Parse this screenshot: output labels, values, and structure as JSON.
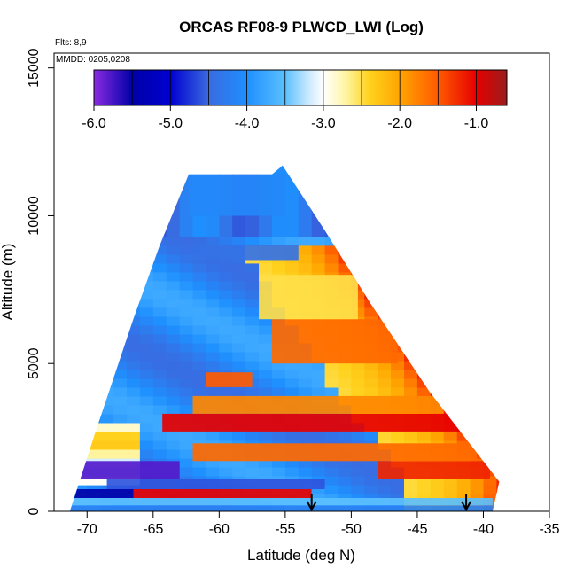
{
  "chart_data": {
    "type": "heatmap",
    "title": "ORCAS RF08-9 PLWCD_LWI (Log)",
    "subtitle_flights": "Flts: 8,9",
    "subtitle_dates": "MMDD: 0205,0208",
    "xlabel": "Latitude (deg N)",
    "ylabel": "Altitude (m)",
    "xlim": [
      -72.5,
      -35
    ],
    "ylim": [
      0,
      15500
    ],
    "x_ticks": [
      -70,
      -65,
      -60,
      -55,
      -50,
      -45,
      -40,
      -35
    ],
    "x_tick_labels": [
      "-70",
      "-65",
      "-60",
      "-55",
      "-50",
      "-45",
      "-40",
      "-35"
    ],
    "y_ticks": [
      0,
      5000,
      10000,
      15000
    ],
    "y_tick_labels": [
      "0",
      "5000",
      "10000",
      "15000"
    ],
    "colorbar": {
      "range": [
        -6.0,
        -0.6
      ],
      "ticks": [
        -6.0,
        -5.0,
        -4.0,
        -3.0,
        -2.0,
        -1.0
      ],
      "tick_labels": [
        "-6.0",
        "-5.0",
        "-4.0",
        "-3.0",
        "-2.0",
        "-1.0"
      ],
      "stops": [
        {
          "v": -6.0,
          "color": "#8a2be2"
        },
        {
          "v": -5.5,
          "color": "#0000a8"
        },
        {
          "v": -5.0,
          "color": "#0000d0"
        },
        {
          "v": -4.5,
          "color": "#3a6ae0"
        },
        {
          "v": -4.0,
          "color": "#1e90ff"
        },
        {
          "v": -3.5,
          "color": "#5bc0ff"
        },
        {
          "v": -3.2,
          "color": "#c8e8ff"
        },
        {
          "v": -3.0,
          "color": "#ffffff"
        },
        {
          "v": -2.7,
          "color": "#fff5a0"
        },
        {
          "v": -2.4,
          "color": "#ffd21e"
        },
        {
          "v": -2.0,
          "color": "#ffa500"
        },
        {
          "v": -1.5,
          "color": "#ff5a00"
        },
        {
          "v": -1.0,
          "color": "#e60000"
        },
        {
          "v": -0.6,
          "color": "#9b1c1c"
        }
      ]
    },
    "domain": {
      "upper_left_boundary": [
        [
          -71.3,
          0
        ],
        [
          -69.5,
          2500
        ],
        [
          -66.5,
          6500
        ],
        [
          -64.5,
          9000
        ],
        [
          -62.3,
          11400
        ]
      ],
      "upper_right_boundary": [
        [
          -62.3,
          11400
        ],
        [
          -56.0,
          11400
        ],
        [
          -55.2,
          11700
        ],
        [
          -52.0,
          9500
        ],
        [
          -48.5,
          7000
        ],
        [
          -44.0,
          4000
        ],
        [
          -38.8,
          1000
        ],
        [
          -39.3,
          0
        ]
      ]
    },
    "bands": [
      {
        "alt_range": [
          0,
          200
        ],
        "lat_range": [
          -71.3,
          -39.3
        ],
        "value": -4.2
      },
      {
        "alt_range": [
          200,
          450
        ],
        "lat_range": [
          -71.3,
          -39.3
        ],
        "value": -3.5
      },
      {
        "alt_range": [
          450,
          750
        ],
        "lat_range": [
          -66.5,
          -53
        ],
        "value": -1.0
      },
      {
        "alt_range": [
          450,
          750
        ],
        "lat_range": [
          -71.3,
          -66.5
        ],
        "value": -5.5
      },
      {
        "alt_range": [
          750,
          1100
        ],
        "lat_range": [
          -68.5,
          -52
        ],
        "value": -4.6
      },
      {
        "alt_range": [
          1100,
          1700
        ],
        "lat_range": [
          -71,
          -63
        ],
        "value": -5.8
      },
      {
        "alt_range": [
          1100,
          1700
        ],
        "lat_range": [
          -48,
          -39.5
        ],
        "value": -1.2
      },
      {
        "alt_range": [
          1700,
          2300
        ],
        "lat_range": [
          -62,
          -40.5
        ],
        "value": -1.6
      },
      {
        "alt_range": [
          2700,
          3300
        ],
        "lat_range": [
          -64.3,
          -41.5
        ],
        "value": -1.0
      },
      {
        "alt_range": [
          3300,
          3900
        ],
        "lat_range": [
          -62,
          -43
        ],
        "value": -1.8
      },
      {
        "alt_range": [
          4200,
          4700
        ],
        "lat_range": [
          -61,
          -57.5
        ],
        "value": -1.5
      },
      {
        "alt_range": [
          5000,
          6500
        ],
        "lat_range": [
          -56,
          -46.5
        ],
        "value": -1.6
      },
      {
        "alt_range": [
          6500,
          8000
        ],
        "lat_range": [
          -57,
          -49.5
        ],
        "value": -2.5
      },
      {
        "alt_range": [
          8500,
          9000
        ],
        "lat_range": [
          -62,
          -54
        ],
        "value": -4.4
      },
      {
        "alt_range": [
          10000,
          11400
        ],
        "lat_range": [
          -62.3,
          -55
        ],
        "value": -4.1
      }
    ],
    "arrows": [
      {
        "lat": -53.0,
        "alt": 600
      },
      {
        "lat": -41.3,
        "alt": 600
      }
    ]
  }
}
